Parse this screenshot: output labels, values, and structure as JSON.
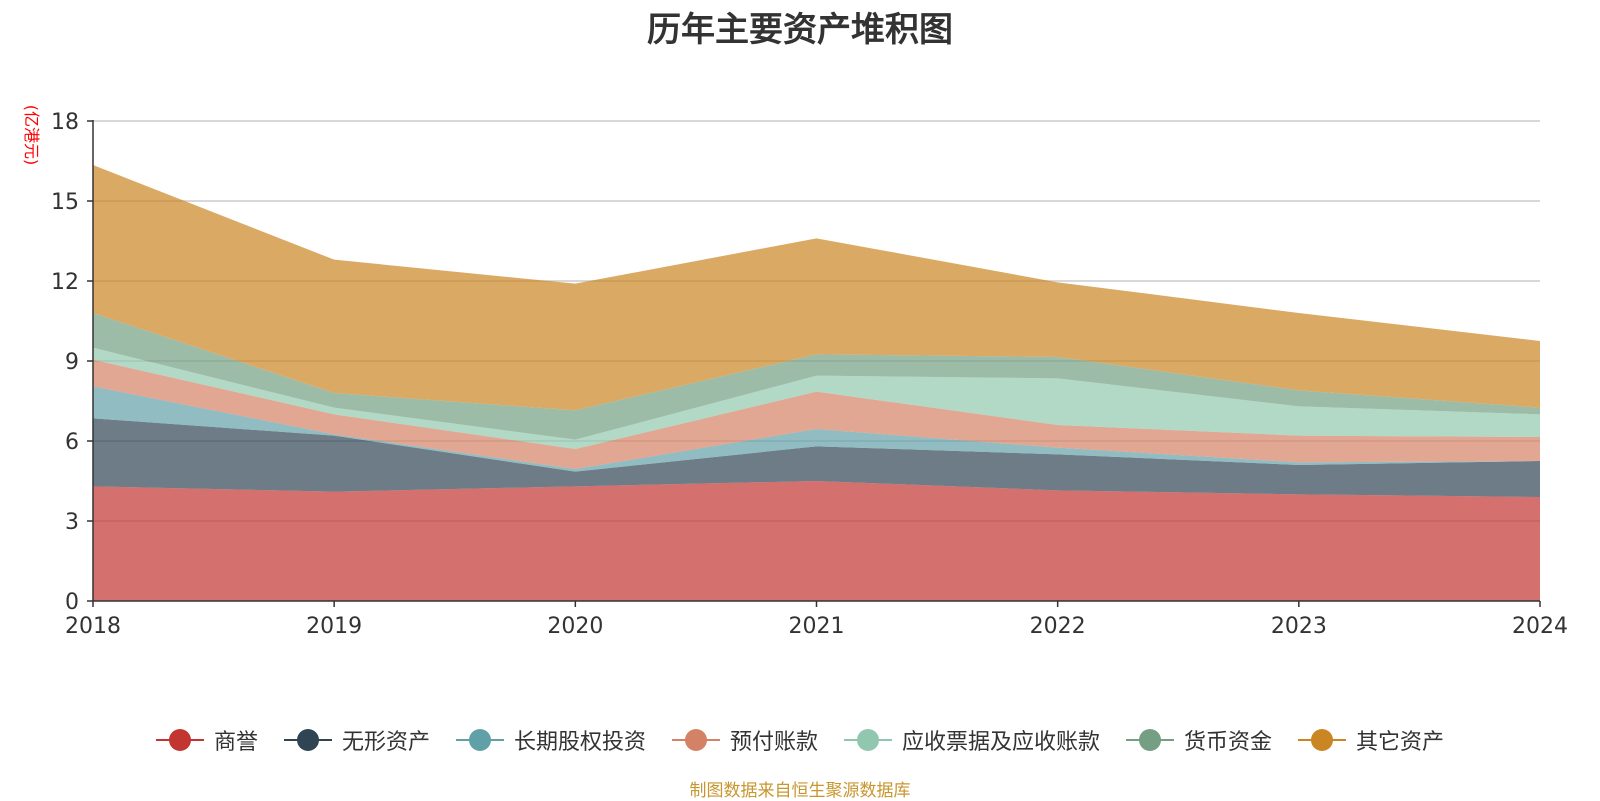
{
  "chart_data": {
    "type": "area",
    "stacked": true,
    "title": "历年主要资产堆积图",
    "unit_label": "(亿港元)",
    "x": [
      "2018",
      "2019",
      "2020",
      "2021",
      "2022",
      "2023",
      "2024"
    ],
    "ylim": [
      0,
      18
    ],
    "yticks": [
      0,
      3,
      6,
      9,
      12,
      15,
      18
    ],
    "grid": true,
    "legend_position": "bottom",
    "series": [
      {
        "name": "商誉",
        "color": "#c23531",
        "values": [
          4.3,
          4.1,
          4.3,
          4.5,
          4.15,
          4.0,
          3.9
        ]
      },
      {
        "name": "无形资产",
        "color": "#2f4554",
        "values": [
          2.55,
          2.1,
          0.55,
          1.3,
          1.35,
          1.1,
          1.35
        ]
      },
      {
        "name": "长期股权投资",
        "color": "#61a0a8",
        "values": [
          1.2,
          0.05,
          0.1,
          0.65,
          0.25,
          0.1,
          0.0
        ]
      },
      {
        "name": "预付账款",
        "color": "#d48265",
        "values": [
          1.0,
          0.75,
          0.75,
          1.4,
          0.85,
          1.0,
          0.9
        ]
      },
      {
        "name": "应收票据及应收账款",
        "color": "#91c7ae",
        "values": [
          0.45,
          0.25,
          0.35,
          0.6,
          1.75,
          1.1,
          0.85
        ]
      },
      {
        "name": "货币资金",
        "color": "#749f83",
        "values": [
          1.3,
          0.55,
          1.1,
          0.8,
          0.8,
          0.6,
          0.25
        ]
      },
      {
        "name": "其它资产",
        "color": "#ca8622",
        "values": [
          5.55,
          5.0,
          4.75,
          4.35,
          2.8,
          2.9,
          2.5
        ]
      }
    ]
  },
  "footer": {
    "source": "制图数据来自恒生聚源数据库"
  }
}
